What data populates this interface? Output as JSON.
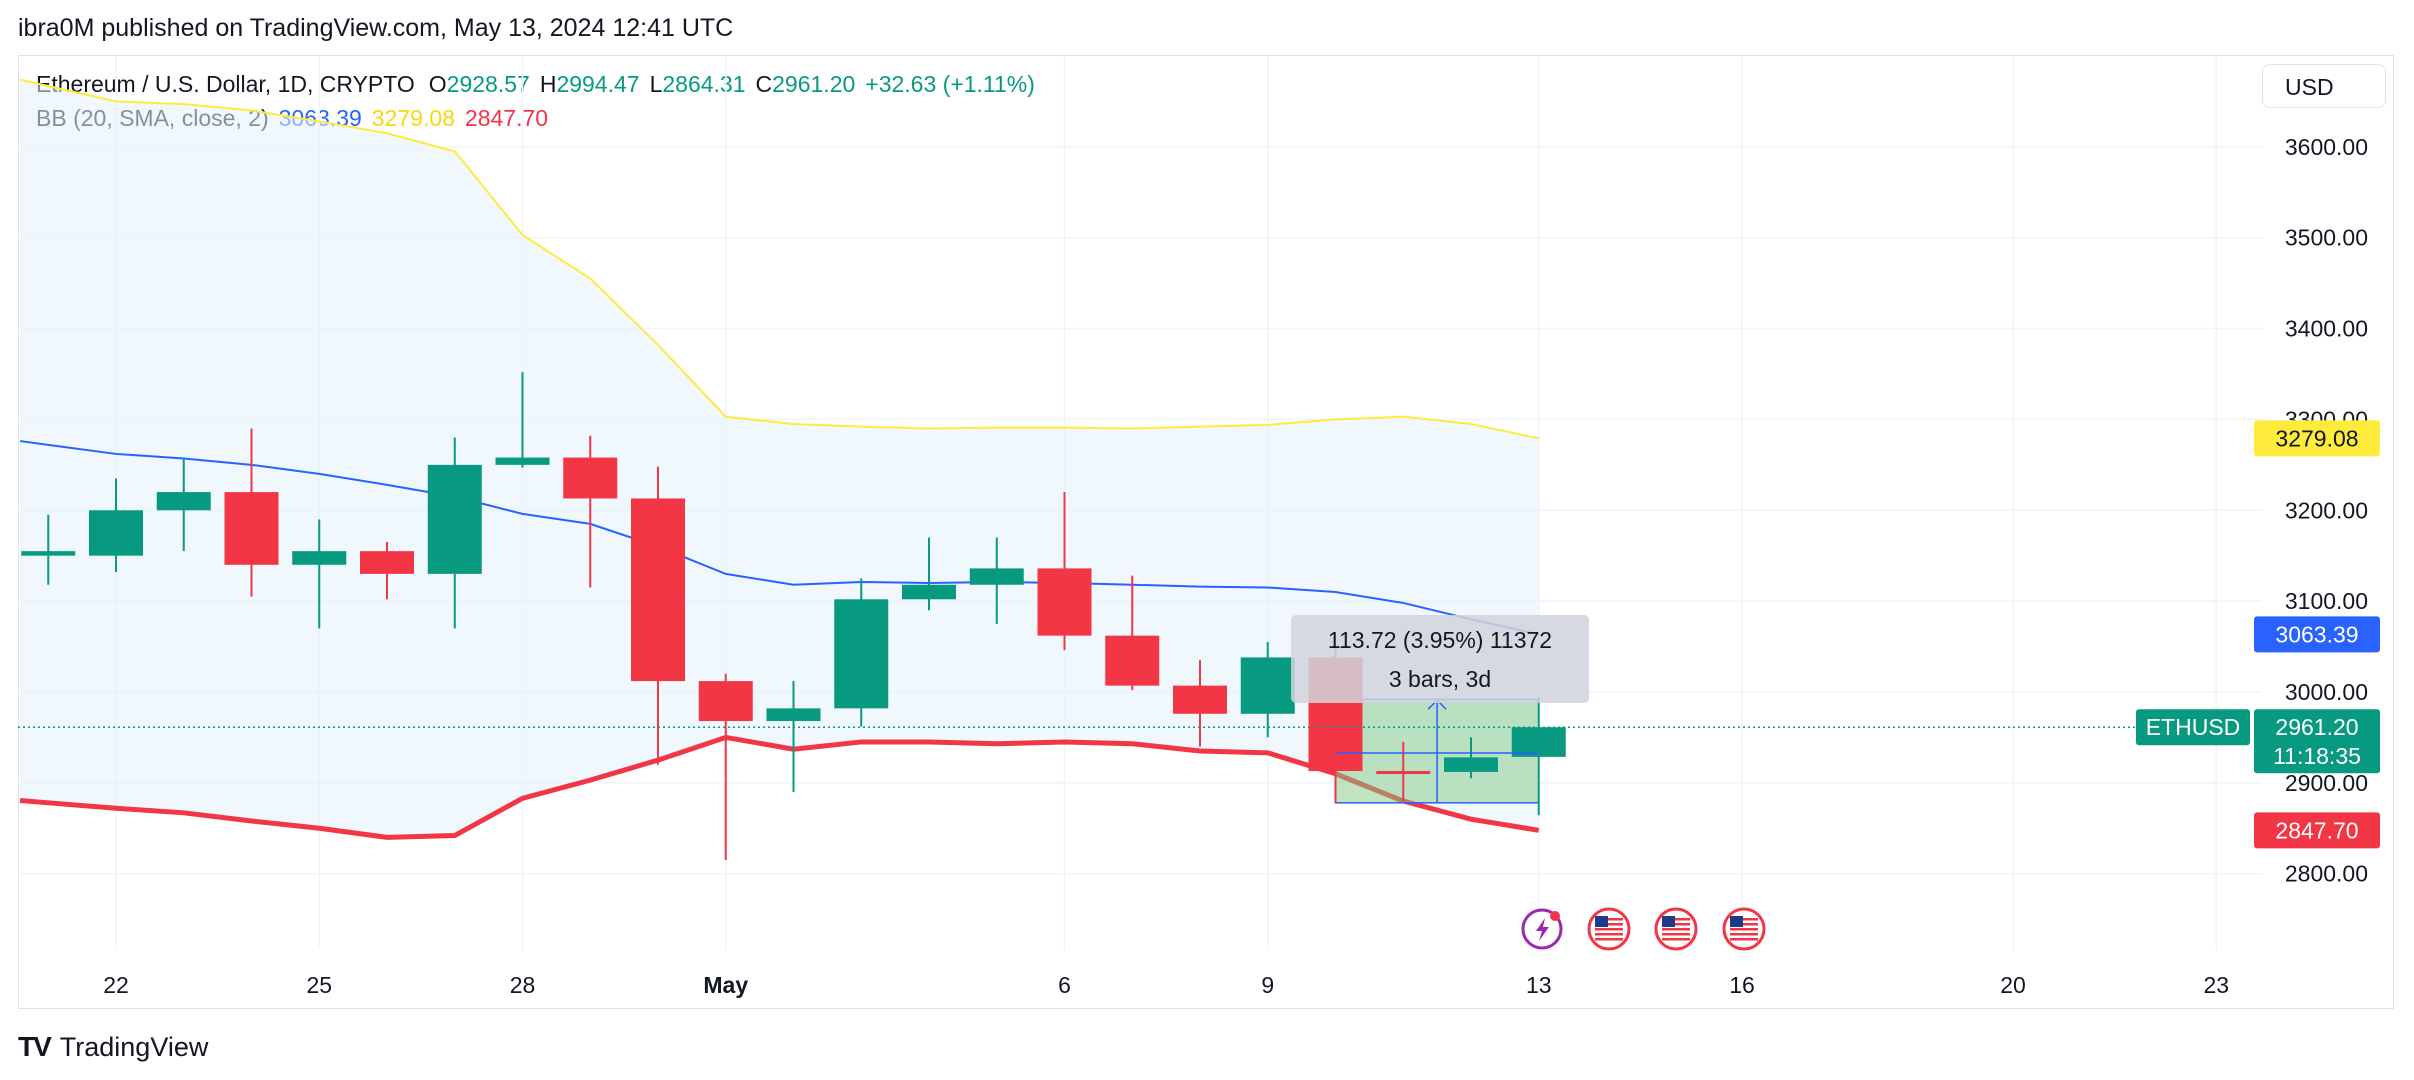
{
  "header": {
    "published": "ibra0M published on TradingView.com, May 13, 2024 12:41 UTC"
  },
  "legend": {
    "symbol": "Ethereum / U.S. Dollar, 1D, CRYPTO",
    "o_label": "O",
    "o": "2928.57",
    "h_label": "H",
    "h": "2994.47",
    "l_label": "L",
    "l": "2864.31",
    "c_label": "C",
    "c": "2961.20",
    "change": "+32.63 (+1.11%)",
    "bb_label": "BB (20, SMA, close, 2)",
    "bb_basis": "3063.39",
    "bb_upper": "3279.08",
    "bb_lower": "2847.70"
  },
  "currency_button": "USD",
  "footer": {
    "logo": "TV",
    "brand": "TradingView"
  },
  "colors": {
    "up": "#089981",
    "down": "#f23645",
    "basis": "#2962ff",
    "upper": "#ffeb3b",
    "lower": "#f23645",
    "band_fill": "#e3f2fd"
  },
  "chart_data": {
    "type": "candlestick",
    "y_ticks": [
      "2800.00",
      "2900.00",
      "3000.00",
      "3100.00",
      "3200.00",
      "3300.00",
      "3400.00",
      "3500.00",
      "3600.00"
    ],
    "ylim": [
      2716,
      3700
    ],
    "x_ticks": [
      "22",
      "25",
      "28",
      "May",
      "6",
      "9",
      "13",
      "16",
      "20",
      "23"
    ],
    "grid": true,
    "candles": [
      {
        "date": "2024-04-21",
        "o": 3150,
        "h": 3195,
        "l": 3118,
        "c": 3155
      },
      {
        "date": "2024-04-22",
        "o": 3150,
        "h": 3235,
        "l": 3132,
        "c": 3200
      },
      {
        "date": "2024-04-23",
        "o": 3200,
        "h": 3258,
        "l": 3155,
        "c": 3220
      },
      {
        "date": "2024-04-24",
        "o": 3220,
        "h": 3290,
        "l": 3105,
        "c": 3140
      },
      {
        "date": "2024-04-25",
        "o": 3140,
        "h": 3190,
        "l": 3070,
        "c": 3155
      },
      {
        "date": "2024-04-26",
        "o": 3155,
        "h": 3165,
        "l": 3102,
        "c": 3130
      },
      {
        "date": "2024-04-27",
        "o": 3130,
        "h": 3280,
        "l": 3070,
        "c": 3250
      },
      {
        "date": "2024-04-28",
        "o": 3250,
        "h": 3352,
        "l": 3247,
        "c": 3258
      },
      {
        "date": "2024-04-29",
        "o": 3258,
        "h": 3282,
        "l": 3115,
        "c": 3213
      },
      {
        "date": "2024-04-30",
        "o": 3213,
        "h": 3248,
        "l": 2920,
        "c": 3012
      },
      {
        "date": "2024-05-01",
        "o": 3012,
        "h": 3020,
        "l": 2815,
        "c": 2968
      },
      {
        "date": "2024-05-02",
        "o": 2968,
        "h": 3012,
        "l": 2890,
        "c": 2982
      },
      {
        "date": "2024-05-03",
        "o": 2982,
        "h": 3125,
        "l": 2962,
        "c": 3102
      },
      {
        "date": "2024-05-04",
        "o": 3102,
        "h": 3170,
        "l": 3090,
        "c": 3118
      },
      {
        "date": "2024-05-05",
        "o": 3118,
        "h": 3170,
        "l": 3075,
        "c": 3136
      },
      {
        "date": "2024-05-06",
        "o": 3136,
        "h": 3220,
        "l": 3046,
        "c": 3062
      },
      {
        "date": "2024-05-07",
        "o": 3062,
        "h": 3128,
        "l": 3002,
        "c": 3007
      },
      {
        "date": "2024-05-08",
        "o": 3007,
        "h": 3035,
        "l": 2940,
        "c": 2976
      },
      {
        "date": "2024-05-09",
        "o": 2976,
        "h": 3055,
        "l": 2950,
        "c": 3038
      },
      {
        "date": "2024-05-10",
        "o": 3038,
        "h": 3050,
        "l": 2878,
        "c": 2913
      },
      {
        "date": "2024-05-11",
        "o": 2913,
        "h": 2945,
        "l": 2880,
        "c": 2912
      },
      {
        "date": "2024-05-12",
        "o": 2912,
        "h": 2950,
        "l": 2905,
        "c": 2928
      },
      {
        "date": "2024-05-13",
        "o": 2928.57,
        "h": 2994.47,
        "l": 2864.31,
        "c": 2961.2
      }
    ],
    "bb_upper": [
      3667,
      3650,
      3647,
      3640,
      3628,
      3615,
      3595,
      3503,
      3455,
      3382,
      3303,
      3295,
      3292,
      3290,
      3291,
      3291,
      3290,
      3292,
      3294,
      3300,
      3303,
      3295,
      3279.08
    ],
    "bb_basis": [
      3272,
      3262,
      3257,
      3250,
      3240,
      3228,
      3215,
      3196,
      3185,
      3160,
      3130,
      3118,
      3121,
      3120,
      3121,
      3120,
      3118,
      3116,
      3115,
      3110,
      3098,
      3080,
      3063.39
    ],
    "bb_lower": [
      2878,
      2872,
      2867,
      2858,
      2850,
      2840,
      2842,
      2883,
      2903,
      2925,
      2950,
      2937,
      2945,
      2945,
      2943,
      2945,
      2943,
      2935,
      2933,
      2910,
      2880,
      2860,
      2847.7
    ],
    "measurement": {
      "label_1": "113.72 (3.95%) 11372",
      "label_2": "3 bars, 3d",
      "start_date": "2024-05-10",
      "end_date": "2024-05-13",
      "low": 2878,
      "high": 2992
    },
    "price_labels": {
      "upper": "3279.08",
      "basis": "3063.39",
      "symbol": "ETHUSD",
      "last": "2961.20",
      "countdown": "11:18:35",
      "lower": "2847.70"
    },
    "events": [
      "lightning-icon",
      "us-flag-icon",
      "us-flag-icon",
      "us-flag-icon"
    ]
  }
}
